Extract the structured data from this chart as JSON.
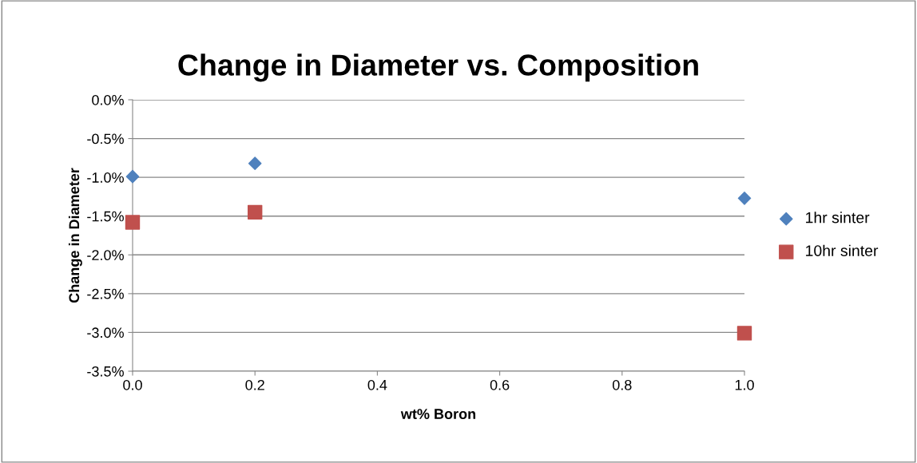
{
  "chart_data": {
    "type": "scatter",
    "title": "Change in Diameter vs. Composition",
    "xlabel": "wt% Boron",
    "ylabel": "Change in Diameter",
    "x": [
      0.0,
      0.2,
      1.0
    ],
    "series": [
      {
        "name": "1hr sinter",
        "color": "#4f81bd",
        "marker": "diamond",
        "values": [
          -0.99,
          -0.82,
          -1.27
        ]
      },
      {
        "name": "10hr sinter",
        "color": "#c0504d",
        "marker": "square",
        "values": [
          -1.58,
          -1.45,
          -3.01
        ]
      }
    ],
    "xlim": [
      0.0,
      1.0
    ],
    "xticks": [
      {
        "value": 0.0,
        "label": "0.0"
      },
      {
        "value": 0.2,
        "label": "0.2"
      },
      {
        "value": 0.4,
        "label": "0.4"
      },
      {
        "value": 0.6,
        "label": "0.6"
      },
      {
        "value": 0.8,
        "label": "0.8"
      },
      {
        "value": 1.0,
        "label": "1.0"
      }
    ],
    "ylim": [
      -3.5,
      0.0
    ],
    "yticks": [
      {
        "value": 0.0,
        "label": "0.0%"
      },
      {
        "value": -0.5,
        "label": "-0.5%"
      },
      {
        "value": -1.0,
        "label": "-1.0%"
      },
      {
        "value": -1.5,
        "label": "-1.5%"
      },
      {
        "value": -2.0,
        "label": "-2.0%"
      },
      {
        "value": -2.5,
        "label": "-2.5%"
      },
      {
        "value": -3.0,
        "label": "-3.0%"
      },
      {
        "value": -3.5,
        "label": "-3.5%"
      }
    ],
    "grid": "y",
    "legend": "right"
  }
}
